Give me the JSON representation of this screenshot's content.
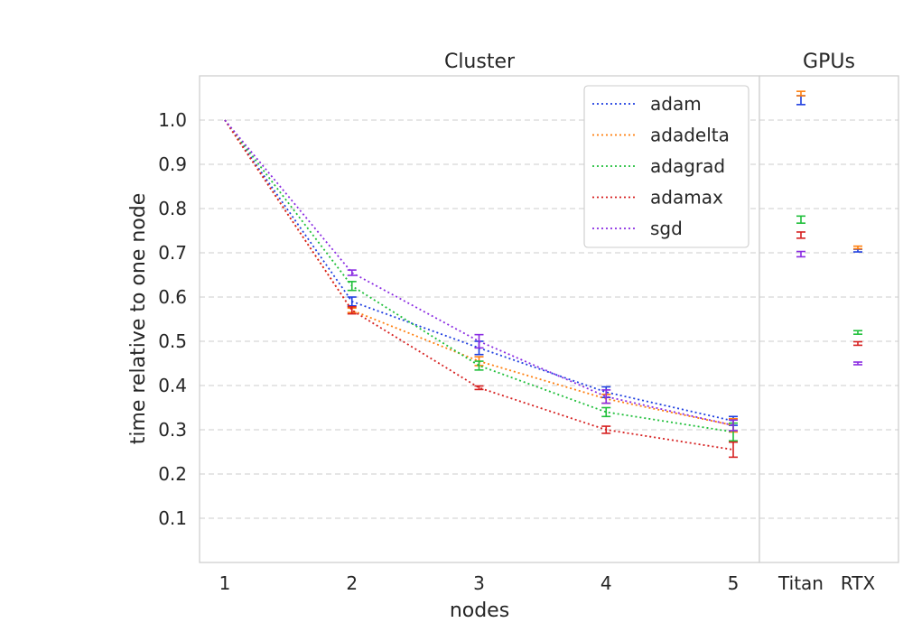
{
  "chart_data": [
    {
      "type": "line",
      "title": "Cluster",
      "xlabel": "nodes",
      "ylabel": "time relative to one node",
      "x": [
        1,
        2,
        3,
        4,
        5
      ],
      "x_tick_labels": [
        "1",
        "2",
        "3",
        "4",
        "5"
      ],
      "ylim": [
        0.0,
        1.1
      ],
      "y_ticks": [
        0.1,
        0.2,
        0.3,
        0.4,
        0.5,
        0.6,
        0.7,
        0.8,
        0.9,
        1.0
      ],
      "y_tick_labels": [
        "0.1",
        "0.2",
        "0.3",
        "0.4",
        "0.5",
        "0.6",
        "0.7",
        "0.8",
        "0.9",
        "1.0"
      ],
      "grid": "horizontal-dashed",
      "line_style": "dotted",
      "legend_position": "top-right",
      "series": [
        {
          "name": "adam",
          "color": "#1f3fe0",
          "values": [
            1.0,
            0.59,
            0.485,
            0.385,
            0.32
          ],
          "err": [
            0.0,
            0.01,
            0.015,
            0.012,
            0.01
          ]
        },
        {
          "name": "adadelta",
          "color": "#ff7f0e",
          "values": [
            1.0,
            0.57,
            0.455,
            0.37,
            0.31
          ],
          "err": [
            0.0,
            0.005,
            0.01,
            0.01,
            0.015
          ]
        },
        {
          "name": "adagrad",
          "color": "#1fbf3a",
          "values": [
            1.0,
            0.625,
            0.445,
            0.34,
            0.295
          ],
          "err": [
            0.0,
            0.01,
            0.01,
            0.01,
            0.02
          ]
        },
        {
          "name": "adamax",
          "color": "#d62020",
          "values": [
            1.0,
            0.57,
            0.395,
            0.3,
            0.255
          ],
          "err": [
            0.0,
            0.008,
            0.004,
            0.008,
            0.017
          ]
        },
        {
          "name": "sgd",
          "color": "#8a2be2",
          "values": [
            1.0,
            0.655,
            0.5,
            0.375,
            0.31
          ],
          "err": [
            0.0,
            0.006,
            0.015,
            0.015,
            0.012
          ]
        }
      ]
    },
    {
      "type": "scatter",
      "title": "GPUs",
      "categories": [
        "Titan",
        "RTX"
      ],
      "ylim": [
        0.0,
        1.1
      ],
      "grid": "horizontal-dashed",
      "series": [
        {
          "name": "adam",
          "color": "#1f3fe0",
          "values": [
            1.045,
            0.705
          ],
          "err": [
            0.01,
            0.003
          ]
        },
        {
          "name": "adadelta",
          "color": "#ff7f0e",
          "values": [
            1.06,
            0.712
          ],
          "err": [
            0.005,
            0.003
          ]
        },
        {
          "name": "adagrad",
          "color": "#1fbf3a",
          "values": [
            0.775,
            0.52
          ],
          "err": [
            0.008,
            0.004
          ]
        },
        {
          "name": "adamax",
          "color": "#d62020",
          "values": [
            0.74,
            0.495
          ],
          "err": [
            0.007,
            0.004
          ]
        },
        {
          "name": "sgd",
          "color": "#8a2be2",
          "values": [
            0.697,
            0.45
          ],
          "err": [
            0.006,
            0.003
          ]
        }
      ]
    }
  ]
}
